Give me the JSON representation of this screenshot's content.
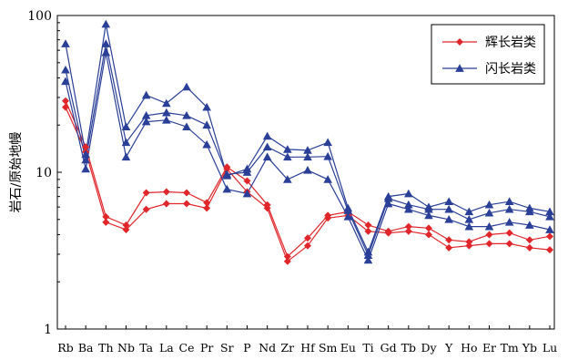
{
  "chart_data": {
    "type": "line",
    "title": "",
    "xlabel": "",
    "ylabel": "岩石/原始地幔",
    "y_scale": "log",
    "ylim": [
      1,
      100
    ],
    "y_ticks": [
      "1",
      "10",
      "100"
    ],
    "grid": false,
    "legend_position": "top-right",
    "categories": [
      "Rb",
      "Ba",
      "Th",
      "Nb",
      "Ta",
      "La",
      "Ce",
      "Pr",
      "Sr",
      "P",
      "Nd",
      "Zr",
      "Hf",
      "Sm",
      "Eu",
      "Ti",
      "Gd",
      "Tb",
      "Dy",
      "Y",
      "Ho",
      "Er",
      "Tm",
      "Yb",
      "Lu"
    ],
    "groups": [
      {
        "name": "辉长岩类",
        "color": "#e0262b",
        "marker": "diamond",
        "series": [
          {
            "values": [
              28.5,
              14.5,
              5.2,
              4.6,
              7.4,
              7.5,
              7.4,
              6.4,
              10.8,
              8.8,
              6.2,
              2.9,
              3.8,
              5.3,
              5.6,
              4.6,
              4.2,
              4.5,
              4.4,
              3.7,
              3.6,
              4.0,
              4.1,
              3.7,
              3.9
            ]
          },
          {
            "values": [
              26.0,
              13.5,
              4.8,
              4.3,
              5.8,
              6.3,
              6.3,
              5.9,
              10.5,
              7.5,
              5.9,
              2.7,
              3.4,
              5.1,
              5.3,
              4.2,
              4.1,
              4.2,
              4.0,
              3.3,
              3.4,
              3.5,
              3.5,
              3.3,
              3.2
            ]
          }
        ]
      },
      {
        "name": "闪长岩类",
        "color": "#2a3f97",
        "marker": "triangle",
        "series": [
          {
            "values": [
              66.0,
              13.0,
              88.0,
              19.5,
              31.0,
              27.5,
              35.0,
              26.0,
              9.5,
              10.5,
              17.0,
              14.0,
              13.8,
              15.5,
              5.9,
              3.1,
              7.0,
              7.3,
              6.0,
              6.5,
              5.6,
              6.2,
              6.5,
              5.9,
              5.6
            ]
          },
          {
            "values": [
              45.0,
              12.0,
              66.0,
              15.5,
              23.0,
              24.0,
              23.0,
              20.0,
              9.7,
              10.0,
              14.5,
              12.5,
              12.5,
              12.6,
              5.7,
              2.95,
              6.8,
              6.2,
              5.8,
              5.8,
              5.0,
              5.5,
              5.8,
              5.6,
              5.2
            ]
          },
          {
            "values": [
              38.0,
              10.5,
              58.0,
              12.5,
              21.0,
              21.5,
              19.5,
              15.0,
              7.8,
              7.3,
              12.5,
              9.0,
              10.3,
              9.0,
              5.2,
              2.75,
              6.3,
              5.8,
              5.3,
              5.0,
              4.5,
              4.5,
              4.8,
              4.6,
              4.3
            ]
          }
        ]
      }
    ]
  }
}
